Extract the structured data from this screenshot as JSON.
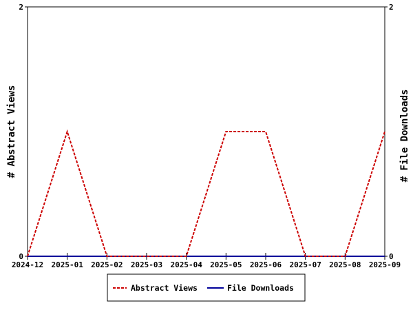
{
  "chart_data": {
    "type": "line",
    "x": [
      "2024-12",
      "2025-01",
      "2025-02",
      "2025-03",
      "2025-04",
      "2025-05",
      "2025-06",
      "2025-07",
      "2025-08",
      "2025-09"
    ],
    "series": [
      {
        "name": "Abstract Views",
        "values": [
          0,
          1,
          0,
          0,
          0,
          1,
          1,
          0,
          0,
          1
        ],
        "color": "#cc0000",
        "style": "dashed",
        "axis": "left"
      },
      {
        "name": "File Downloads",
        "values": [
          0,
          0,
          0,
          0,
          0,
          0,
          0,
          0,
          0,
          0
        ],
        "color": "#000099",
        "style": "solid",
        "axis": "right"
      }
    ],
    "ylabel": "# Abstract Views",
    "y2label": "# File Downloads",
    "ylim": [
      0,
      2
    ],
    "y2lim": [
      0,
      2
    ],
    "yticks": [
      "0",
      "2"
    ],
    "y2ticks": [
      "0",
      "2"
    ],
    "grid": false,
    "legend_position": "bottom-center"
  }
}
